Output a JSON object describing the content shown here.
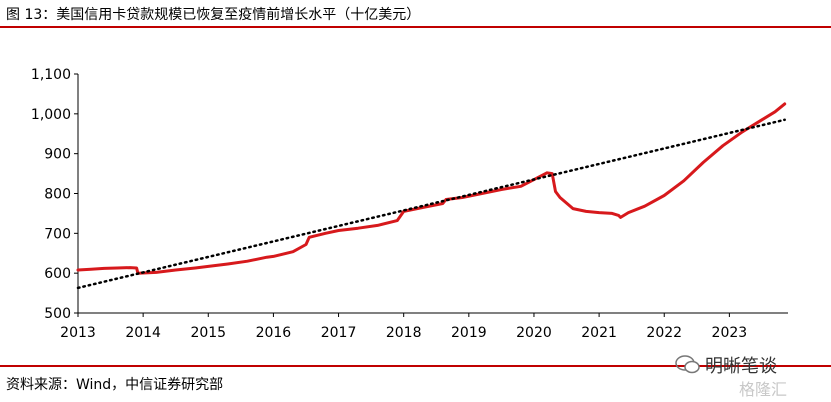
{
  "title": "图 13：美国信用卡贷款规模已恢复至疫情前增长水平（十亿美元）",
  "source": "资料来源：Wind，中信证券研究部",
  "watermark": {
    "text": "明晰笔谈",
    "text2": "格隆汇"
  },
  "colors": {
    "rule": "#c00000",
    "series": "#d7191c",
    "trend": "#000000"
  },
  "chart_data": {
    "type": "line",
    "title": "",
    "xlabel": "",
    "ylabel": "",
    "xlim": [
      2013,
      2023.9
    ],
    "ylim": [
      500,
      1100
    ],
    "xticks": [
      "2013",
      "2014",
      "2015",
      "2016",
      "2017",
      "2018",
      "2019",
      "2020",
      "2021",
      "2022",
      "2023"
    ],
    "yticks": [
      "500",
      "600",
      "700",
      "800",
      "900",
      "1,000",
      "1,100"
    ],
    "grid": false,
    "series": [
      {
        "style": "solid",
        "points": [
          [
            2013.0,
            608
          ],
          [
            2013.2,
            610
          ],
          [
            2013.4,
            612
          ],
          [
            2013.6,
            613
          ],
          [
            2013.8,
            614
          ],
          [
            2013.9,
            613
          ],
          [
            2013.92,
            600
          ],
          [
            2014.2,
            602
          ],
          [
            2014.5,
            608
          ],
          [
            2014.8,
            613
          ],
          [
            2015.0,
            617
          ],
          [
            2015.3,
            623
          ],
          [
            2015.6,
            630
          ],
          [
            2015.9,
            640
          ],
          [
            2016.0,
            642
          ],
          [
            2016.3,
            654
          ],
          [
            2016.5,
            672
          ],
          [
            2016.55,
            690
          ],
          [
            2016.8,
            700
          ],
          [
            2017.0,
            707
          ],
          [
            2017.3,
            713
          ],
          [
            2017.6,
            720
          ],
          [
            2017.9,
            732
          ],
          [
            2018.0,
            755
          ],
          [
            2018.3,
            765
          ],
          [
            2018.6,
            775
          ],
          [
            2018.65,
            785
          ],
          [
            2018.9,
            790
          ],
          [
            2019.2,
            800
          ],
          [
            2019.5,
            810
          ],
          [
            2019.8,
            818
          ],
          [
            2020.0,
            835
          ],
          [
            2020.2,
            852
          ],
          [
            2020.28,
            850
          ],
          [
            2020.33,
            805
          ],
          [
            2020.4,
            790
          ],
          [
            2020.6,
            762
          ],
          [
            2020.8,
            755
          ],
          [
            2021.0,
            752
          ],
          [
            2021.2,
            750
          ],
          [
            2021.3,
            745
          ],
          [
            2021.33,
            740
          ],
          [
            2021.45,
            752
          ],
          [
            2021.7,
            768
          ],
          [
            2022.0,
            795
          ],
          [
            2022.3,
            832
          ],
          [
            2022.6,
            878
          ],
          [
            2022.9,
            920
          ],
          [
            2023.2,
            955
          ],
          [
            2023.5,
            985
          ],
          [
            2023.7,
            1005
          ],
          [
            2023.85,
            1025
          ]
        ]
      },
      {
        "style": "dotted",
        "points": [
          [
            2013.0,
            563
          ],
          [
            2023.85,
            985
          ]
        ]
      }
    ]
  }
}
